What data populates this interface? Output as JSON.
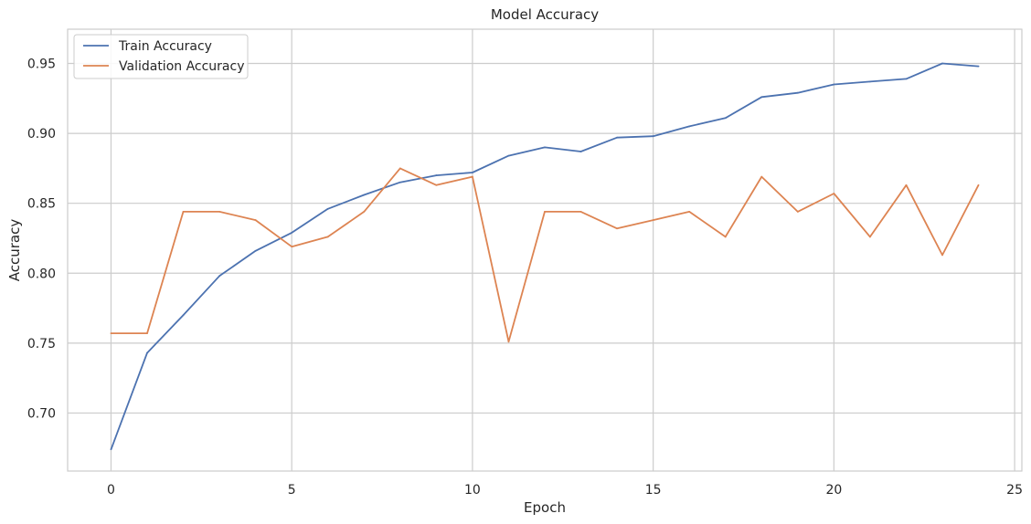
{
  "chart_data": {
    "type": "line",
    "title": "Model Accuracy",
    "xlabel": "Epoch",
    "ylabel": "Accuracy",
    "xlim": [
      -1.2,
      25.2
    ],
    "ylim": [
      0.6585,
      0.9745
    ],
    "xticks": [
      0,
      5,
      10,
      15,
      20,
      25
    ],
    "yticks": [
      0.7,
      0.75,
      0.8,
      0.85,
      0.9,
      0.95
    ],
    "xtick_labels": [
      "0",
      "5",
      "10",
      "15",
      "20",
      "25"
    ],
    "ytick_labels": [
      "0.70",
      "0.75",
      "0.80",
      "0.85",
      "0.90",
      "0.95"
    ],
    "grid": true,
    "legend_position": "top-left",
    "series": [
      {
        "name": "Train Accuracy",
        "color": "#4c72b0",
        "x": [
          0,
          1,
          2,
          3,
          4,
          5,
          6,
          7,
          8,
          9,
          10,
          11,
          12,
          13,
          14,
          15,
          16,
          17,
          18,
          19,
          20,
          21,
          22,
          23,
          24
        ],
        "values": [
          0.674,
          0.743,
          0.77,
          0.798,
          0.816,
          0.829,
          0.846,
          0.856,
          0.865,
          0.87,
          0.872,
          0.884,
          0.89,
          0.887,
          0.897,
          0.898,
          0.905,
          0.911,
          0.926,
          0.929,
          0.935,
          0.937,
          0.939,
          0.95,
          0.948
        ]
      },
      {
        "name": "Validation Accuracy",
        "color": "#dd8452",
        "x": [
          0,
          1,
          2,
          3,
          4,
          5,
          6,
          7,
          8,
          9,
          10,
          11,
          12,
          13,
          14,
          15,
          16,
          17,
          18,
          19,
          20,
          21,
          22,
          23,
          24
        ],
        "values": [
          0.757,
          0.757,
          0.844,
          0.844,
          0.838,
          0.819,
          0.826,
          0.844,
          0.875,
          0.863,
          0.869,
          0.751,
          0.844,
          0.844,
          0.832,
          0.838,
          0.844,
          0.826,
          0.869,
          0.844,
          0.857,
          0.826,
          0.863,
          0.813,
          0.863
        ]
      }
    ]
  }
}
